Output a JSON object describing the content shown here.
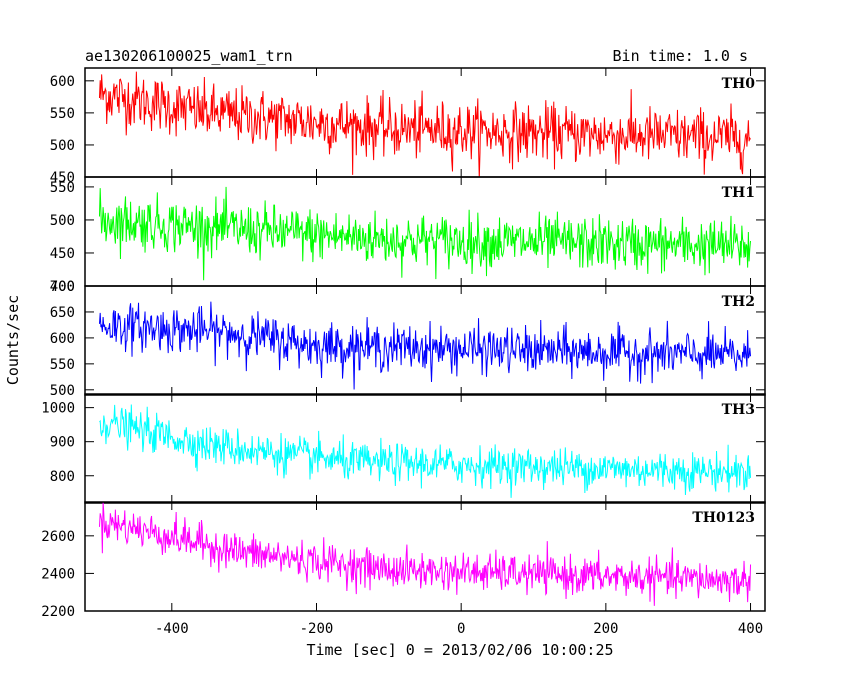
{
  "header": {
    "title": "ae130206100025_wam1_trn",
    "bin_time": "Bin time: 1.0 s"
  },
  "chart_data": {
    "type": "line",
    "title": "ae130206100025_wam1_trn",
    "subtitle": "Bin time: 1.0 s",
    "xlabel": "Time [sec] 0 = 2013/02/06 10:00:25",
    "ylabel": "Counts/sec",
    "xlim": [
      -520,
      420
    ],
    "x_ticks": [
      -400,
      -200,
      0,
      200,
      400
    ],
    "x_range": [
      -500,
      400
    ],
    "panels": [
      {
        "name": "TH0",
        "color": "#ff0000",
        "ylim": [
          450,
          620
        ],
        "y_ticks": [
          450,
          500,
          550,
          600
        ],
        "trend": [
          [
            -500,
            580
          ],
          [
            -350,
            550
          ],
          [
            -100,
            525
          ],
          [
            400,
            510
          ]
        ],
        "noise_sd": 22
      },
      {
        "name": "TH1",
        "color": "#00ff00",
        "ylim": [
          400,
          565
        ],
        "y_ticks": [
          400,
          450,
          500,
          550
        ],
        "trend": [
          [
            -500,
            500
          ],
          [
            -300,
            485
          ],
          [
            -100,
            470
          ],
          [
            400,
            460
          ]
        ],
        "noise_sd": 20
      },
      {
        "name": "TH2",
        "color": "#0000ff",
        "ylim": [
          490,
          700
        ],
        "y_ticks": [
          500,
          550,
          600,
          650,
          700
        ],
        "trend": [
          [
            -500,
            625
          ],
          [
            -320,
            610
          ],
          [
            -200,
            585
          ],
          [
            400,
            565
          ]
        ],
        "noise_sd": 22
      },
      {
        "name": "TH3",
        "color": "#00ffff",
        "ylim": [
          720,
          1040
        ],
        "y_ticks": [
          800,
          900,
          1000
        ],
        "trend": [
          [
            -500,
            960
          ],
          [
            -350,
            890
          ],
          [
            -150,
            840
          ],
          [
            400,
            810
          ]
        ],
        "noise_sd": 28
      },
      {
        "name": "TH0123",
        "color": "#ff00ff",
        "ylim": [
          2200,
          2780
        ],
        "y_ticks": [
          2200,
          2400,
          2600
        ],
        "trend": [
          [
            -500,
            2680
          ],
          [
            -300,
            2510
          ],
          [
            -100,
            2420
          ],
          [
            400,
            2360
          ]
        ],
        "noise_sd": 50
      }
    ]
  }
}
